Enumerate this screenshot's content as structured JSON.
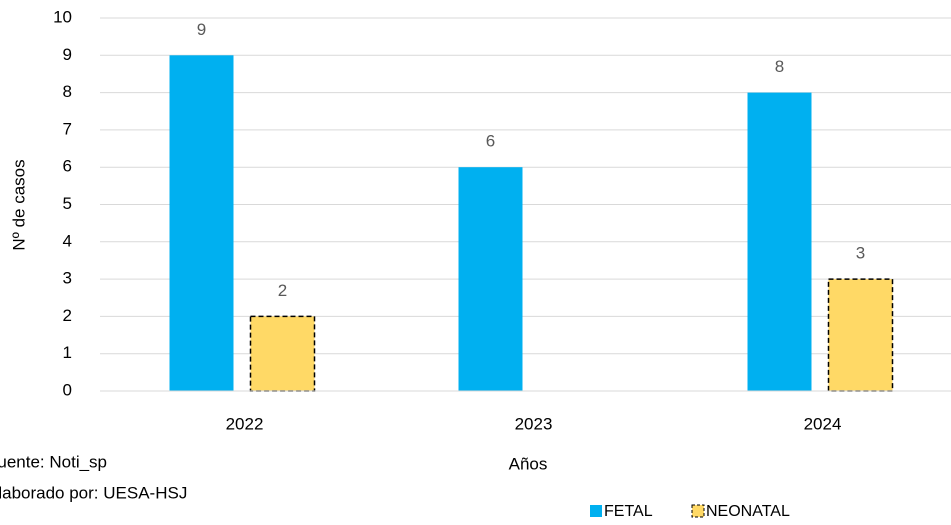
{
  "chart_data": {
    "type": "bar",
    "categories": [
      "2022",
      "2023",
      "2024"
    ],
    "series": [
      {
        "name": "FETAL",
        "color": "#00b0f0",
        "values": [
          9,
          6,
          8
        ]
      },
      {
        "name": "NEONATAL",
        "color": "#ffd966",
        "values": [
          2,
          null,
          3
        ]
      }
    ],
    "ylim": [
      0,
      10
    ],
    "yticks": [
      0,
      1,
      2,
      3,
      4,
      5,
      6,
      7,
      8,
      9,
      10
    ],
    "grid": true,
    "ylabel": "Nº de casos",
    "xlabel": "Años",
    "legend": "bottom",
    "notes": [
      "Fuente: Noti_sp",
      "Elaborado por: UESA-HSJ"
    ]
  }
}
